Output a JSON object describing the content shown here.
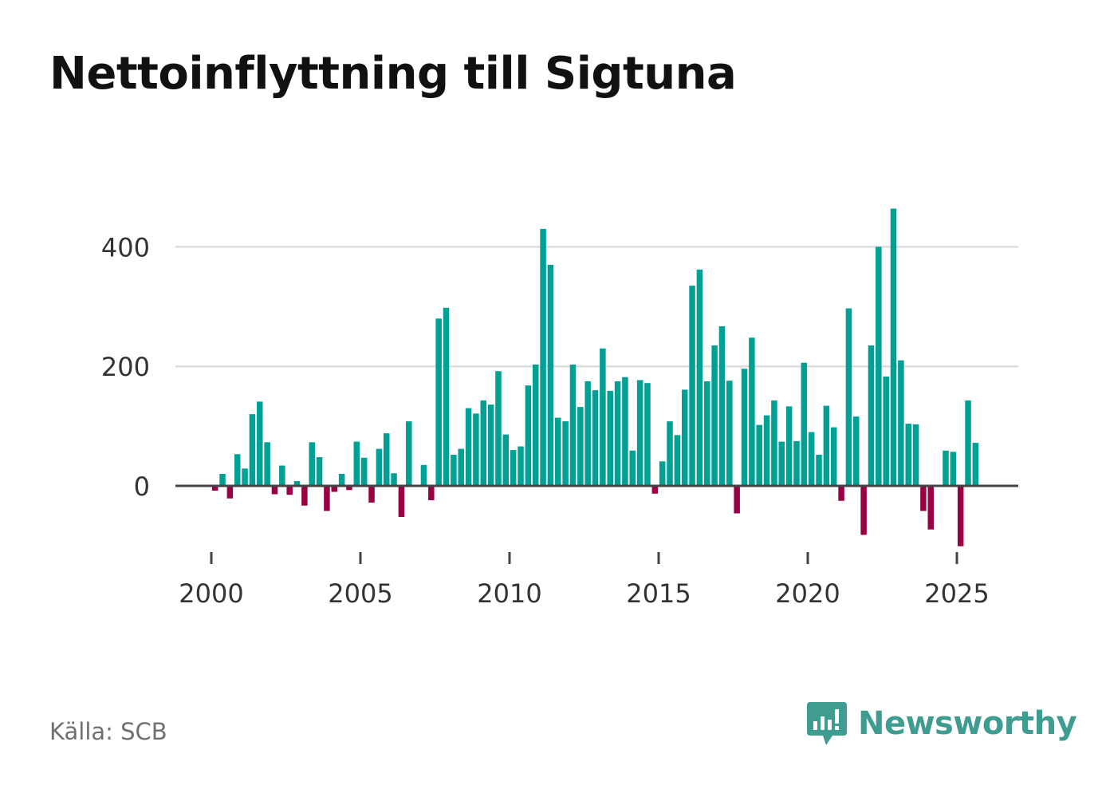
{
  "title": "Nettoinflyttning till Sigtuna",
  "source": "Källa: SCB",
  "logo": {
    "name": "Newsworthy",
    "icon": "newsworthy-logo-icon"
  },
  "colors": {
    "positive": "#00a095",
    "negative": "#990044",
    "grid": "#dddddd",
    "axis": "#444444",
    "logo": "#3e9c90"
  },
  "chart_data": {
    "type": "bar",
    "title": "Nettoinflyttning till Sigtuna",
    "xlabel": "",
    "ylabel": "",
    "frequency": "quarterly",
    "ylim": [
      -105,
      470
    ],
    "xlim": [
      1998.75,
      2027.1
    ],
    "xticks": [
      2000,
      2005,
      2010,
      2015,
      2020,
      2025
    ],
    "xtick_labels": [
      "2000",
      "2005",
      "2010",
      "2015",
      "2020",
      "2025"
    ],
    "yticks": [
      0,
      200,
      400
    ],
    "ytick_labels": [
      "0",
      "200",
      "400"
    ],
    "grid": "horizontal",
    "series": [
      {
        "name": "Nettoinflyttning",
        "x": [
          "2000 Q1",
          "2000 Q2",
          "2000 Q3",
          "2000 Q4",
          "2001 Q1",
          "2001 Q2",
          "2001 Q3",
          "2001 Q4",
          "2002 Q1",
          "2002 Q2",
          "2002 Q3",
          "2002 Q4",
          "2003 Q1",
          "2003 Q2",
          "2003 Q3",
          "2003 Q4",
          "2004 Q1",
          "2004 Q2",
          "2004 Q3",
          "2004 Q4",
          "2005 Q1",
          "2005 Q2",
          "2005 Q3",
          "2005 Q4",
          "2006 Q1",
          "2006 Q2",
          "2006 Q3",
          "2006 Q4",
          "2007 Q1",
          "2007 Q2",
          "2007 Q3",
          "2007 Q4",
          "2008 Q1",
          "2008 Q2",
          "2008 Q3",
          "2008 Q4",
          "2009 Q1",
          "2009 Q2",
          "2009 Q3",
          "2009 Q4",
          "2010 Q1",
          "2010 Q2",
          "2010 Q3",
          "2010 Q4",
          "2011 Q1",
          "2011 Q2",
          "2011 Q3",
          "2011 Q4",
          "2012 Q1",
          "2012 Q2",
          "2012 Q3",
          "2012 Q4",
          "2013 Q1",
          "2013 Q2",
          "2013 Q3",
          "2013 Q4",
          "2014 Q1",
          "2014 Q2",
          "2014 Q3",
          "2014 Q4",
          "2015 Q1",
          "2015 Q2",
          "2015 Q3",
          "2015 Q4",
          "2016 Q1",
          "2016 Q2",
          "2016 Q3",
          "2016 Q4",
          "2017 Q1",
          "2017 Q2",
          "2017 Q3",
          "2017 Q4",
          "2018 Q1",
          "2018 Q2",
          "2018 Q3",
          "2018 Q4",
          "2019 Q1",
          "2019 Q2",
          "2019 Q3",
          "2019 Q4",
          "2020 Q1",
          "2020 Q2",
          "2020 Q3",
          "2020 Q4",
          "2021 Q1",
          "2021 Q2",
          "2021 Q3",
          "2021 Q4",
          "2022 Q1",
          "2022 Q2",
          "2022 Q3",
          "2022 Q4",
          "2023 Q1",
          "2023 Q2",
          "2023 Q3",
          "2023 Q4",
          "2024 Q1",
          "2024 Q2",
          "2024 Q3",
          "2024 Q4",
          "2025 Q1",
          "2025 Q2",
          "2025 Q3",
          "2025 Q4"
        ],
        "values": [
          -8,
          20,
          -21,
          53,
          29,
          120,
          141,
          73,
          -14,
          34,
          -15,
          8,
          -33,
          73,
          48,
          -42,
          -10,
          20,
          -7,
          74,
          47,
          -28,
          62,
          88,
          21,
          -52,
          108,
          0,
          35,
          -24,
          280,
          298,
          52,
          62,
          130,
          121,
          143,
          136,
          192,
          86,
          60,
          66,
          168,
          203,
          430,
          370,
          114,
          108,
          203,
          132,
          175,
          160,
          230,
          159,
          175,
          182,
          59,
          177,
          172,
          -13,
          41,
          108,
          85,
          161,
          335,
          362,
          175,
          235,
          267,
          176,
          -46,
          196,
          248,
          102,
          118,
          143,
          74,
          133,
          75,
          206,
          90,
          52,
          134,
          98,
          -25,
          297,
          116,
          -82,
          235,
          400,
          183,
          464,
          210,
          104,
          103,
          -42,
          -73,
          0,
          59,
          57,
          -101,
          143,
          72,
          0
        ]
      }
    ]
  }
}
